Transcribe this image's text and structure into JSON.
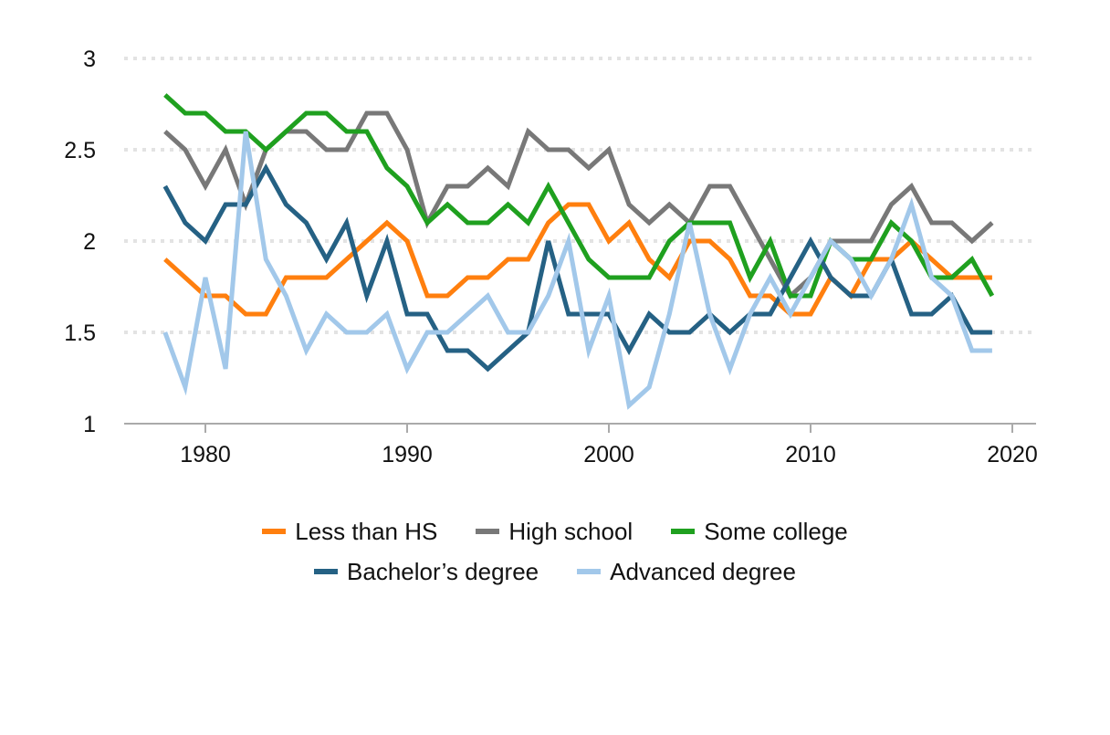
{
  "chart_data": {
    "type": "line",
    "title": "",
    "xlabel": "",
    "ylabel": "",
    "ylim": [
      1,
      3
    ],
    "xlim": [
      1976,
      2021
    ],
    "yticks": [
      1,
      1.5,
      2,
      2.5,
      3
    ],
    "ytick_labels": [
      "1",
      "1.5",
      "2",
      "2.5",
      "3"
    ],
    "xticks": [
      1980,
      1990,
      2000,
      2010,
      2020
    ],
    "xtick_labels": [
      "1980",
      "1990",
      "2000",
      "2010",
      "2020"
    ],
    "grid": "horizontal dotted",
    "legend_position": "bottom",
    "x": [
      1978,
      1979,
      1980,
      1981,
      1982,
      1983,
      1984,
      1985,
      1986,
      1987,
      1988,
      1989,
      1990,
      1991,
      1992,
      1993,
      1994,
      1995,
      1996,
      1997,
      1998,
      1999,
      2000,
      2001,
      2002,
      2003,
      2004,
      2005,
      2006,
      2007,
      2008,
      2009,
      2010,
      2011,
      2012,
      2013,
      2014,
      2015,
      2016,
      2017,
      2018,
      2019
    ],
    "series": [
      {
        "name": "Less than HS",
        "color": "#ff7f0e",
        "values": [
          1.9,
          1.8,
          1.7,
          1.7,
          1.6,
          1.6,
          1.8,
          1.8,
          1.8,
          1.9,
          2.0,
          2.1,
          2.0,
          1.7,
          1.7,
          1.8,
          1.8,
          1.9,
          1.9,
          2.1,
          2.2,
          2.2,
          2.0,
          2.1,
          1.9,
          1.8,
          2.0,
          2.0,
          1.9,
          1.7,
          1.7,
          1.6,
          1.6,
          1.8,
          1.7,
          1.9,
          1.9,
          2.0,
          1.9,
          1.8,
          1.8,
          1.8
        ]
      },
      {
        "name": "High school",
        "color": "#787878",
        "values": [
          2.6,
          2.5,
          2.3,
          2.5,
          2.2,
          2.5,
          2.6,
          2.6,
          2.5,
          2.5,
          2.7,
          2.7,
          2.5,
          2.1,
          2.3,
          2.3,
          2.4,
          2.3,
          2.6,
          2.5,
          2.5,
          2.4,
          2.5,
          2.2,
          2.1,
          2.2,
          2.1,
          2.3,
          2.3,
          2.1,
          1.9,
          1.7,
          1.8,
          2.0,
          2.0,
          2.0,
          2.2,
          2.3,
          2.1,
          2.1,
          2.0,
          2.1
        ]
      },
      {
        "name": "Some college",
        "color": "#1fa01f",
        "values": [
          2.8,
          2.7,
          2.7,
          2.6,
          2.6,
          2.5,
          2.6,
          2.7,
          2.7,
          2.6,
          2.6,
          2.4,
          2.3,
          2.1,
          2.2,
          2.1,
          2.1,
          2.2,
          2.1,
          2.3,
          2.1,
          1.9,
          1.8,
          1.8,
          1.8,
          2.0,
          2.1,
          2.1,
          2.1,
          1.8,
          2.0,
          1.7,
          1.7,
          2.0,
          1.9,
          1.9,
          2.1,
          2.0,
          1.8,
          1.8,
          1.9,
          1.7
        ]
      },
      {
        "name": "Bachelor’s degree",
        "color": "#256184",
        "values": [
          2.3,
          2.1,
          2.0,
          2.2,
          2.2,
          2.4,
          2.2,
          2.1,
          1.9,
          2.1,
          1.7,
          2.0,
          1.6,
          1.6,
          1.4,
          1.4,
          1.3,
          1.4,
          1.5,
          2.0,
          1.6,
          1.6,
          1.6,
          1.4,
          1.6,
          1.5,
          1.5,
          1.6,
          1.5,
          1.6,
          1.6,
          1.8,
          2.0,
          1.8,
          1.7,
          1.7,
          1.9,
          1.6,
          1.6,
          1.7,
          1.5,
          1.5
        ]
      },
      {
        "name": "Advanced degree",
        "color": "#a2c8ea",
        "values": [
          1.5,
          1.2,
          1.8,
          1.3,
          2.6,
          1.9,
          1.7,
          1.4,
          1.6,
          1.5,
          1.5,
          1.6,
          1.3,
          1.5,
          1.5,
          1.6,
          1.7,
          1.5,
          1.5,
          1.7,
          2.0,
          1.4,
          1.7,
          1.1,
          1.2,
          1.6,
          2.1,
          1.6,
          1.3,
          1.6,
          1.8,
          1.6,
          1.8,
          2.0,
          1.9,
          1.7,
          1.9,
          2.2,
          1.8,
          1.7,
          1.4,
          1.4
        ]
      }
    ]
  },
  "legend": {
    "row1": [
      {
        "label": "Less than HS",
        "color": "#ff7f0e"
      },
      {
        "label": "High school",
        "color": "#787878"
      },
      {
        "label": "Some college",
        "color": "#1fa01f"
      }
    ],
    "row2": [
      {
        "label": "Bachelor’s degree",
        "color": "#256184"
      },
      {
        "label": "Advanced degree",
        "color": "#a2c8ea"
      }
    ]
  }
}
